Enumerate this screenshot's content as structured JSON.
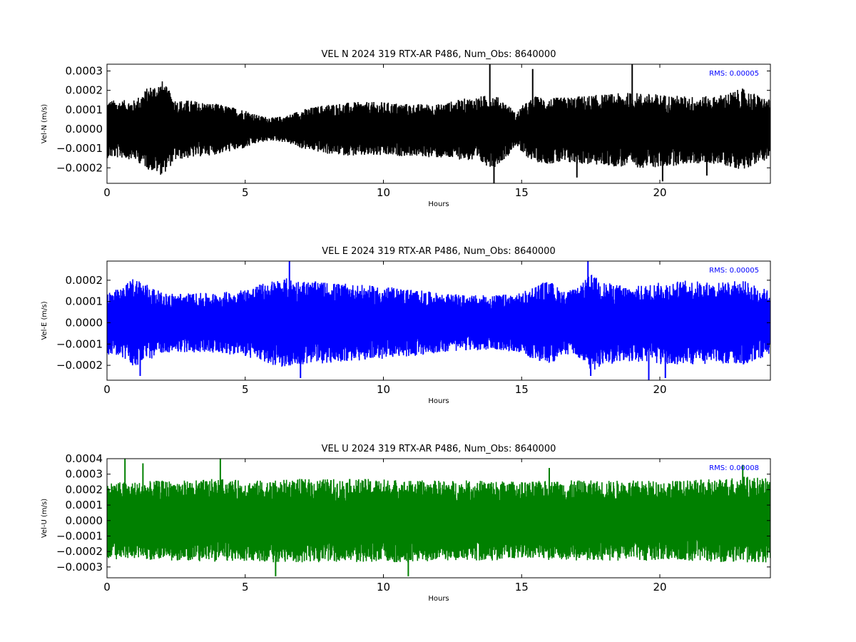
{
  "chart_data": [
    {
      "type": "line",
      "title": "VEL N 2024 319 RTX-AR  P486, Num_Obs: 8640000",
      "xlabel": "Hours",
      "ylabel": "Vel-N (m/s)",
      "color": "#000000",
      "annotation": "RMS:  0.00005",
      "annotation_color": "#0000ff",
      "xlim": [
        0,
        24
      ],
      "ylim": [
        -0.00028,
        0.000335
      ],
      "x_ticks": [
        0,
        5,
        10,
        15,
        20
      ],
      "y_ticks": [
        -0.0002,
        -0.0001,
        0.0,
        0.0001,
        0.0002,
        0.0003
      ],
      "x_tick_labels": [
        "0",
        "5",
        "10",
        "15",
        "20"
      ],
      "y_tick_labels": [
        "−0.0002",
        "−0.0001",
        "0.0000",
        "0.0001",
        "0.0002",
        "0.0003"
      ],
      "envelope": {
        "x": [
          0,
          0.5,
          1.0,
          1.5,
          2.0,
          2.5,
          3.0,
          4.0,
          5.0,
          5.5,
          6.0,
          6.5,
          7.0,
          8.0,
          9.0,
          10.0,
          11.0,
          12.0,
          13.0,
          13.5,
          14.0,
          14.5,
          14.8,
          15.0,
          15.5,
          16.0,
          17.0,
          18.0,
          19.0,
          20.0,
          21.0,
          22.0,
          23.0,
          24.0
        ],
        "upper": [
          0.00015,
          0.00015,
          0.00015,
          0.00022,
          0.00025,
          0.00015,
          0.00015,
          0.00013,
          0.0001,
          7e-05,
          6e-05,
          7e-05,
          0.0001,
          0.00013,
          0.00014,
          0.00014,
          0.00013,
          0.00013,
          0.00016,
          0.00017,
          0.00018,
          0.00013,
          8e-05,
          0.00012,
          0.00017,
          0.00016,
          0.00017,
          0.00018,
          0.00019,
          0.00018,
          0.00017,
          0.00017,
          0.00021,
          0.00015
        ],
        "lower": [
          -0.00015,
          -0.00015,
          -0.00016,
          -0.00021,
          -0.00024,
          -0.00016,
          -0.00015,
          -0.00013,
          -0.0001,
          -7e-05,
          -6e-05,
          -7e-05,
          -0.0001,
          -0.00013,
          -0.00014,
          -0.00014,
          -0.00014,
          -0.00015,
          -0.00016,
          -0.00018,
          -0.0002,
          -0.00014,
          -8e-05,
          -0.00013,
          -0.00017,
          -0.00018,
          -0.00018,
          -0.00019,
          -0.0002,
          -0.0002,
          -0.00018,
          -0.00018,
          -0.00021,
          -0.00015
        ]
      },
      "spikes": [
        [
          13.85,
          0.00034
        ],
        [
          14.0,
          -0.00028
        ],
        [
          15.4,
          0.00031
        ],
        [
          17.0,
          -0.00025
        ],
        [
          19.0,
          0.00034
        ],
        [
          20.1,
          -0.00027
        ],
        [
          21.7,
          -0.00024
        ]
      ]
    },
    {
      "type": "line",
      "title": "VEL E 2024 319 RTX-AR  P486, Num_Obs: 8640000",
      "xlabel": "Hours",
      "ylabel": "Vel-E (m/s)",
      "color": "#0000ff",
      "annotation": "RMS:  0.00005",
      "annotation_color": "#0000ff",
      "xlim": [
        0,
        24
      ],
      "ylim": [
        -0.00027,
        0.00029
      ],
      "x_ticks": [
        0,
        5,
        10,
        15,
        20
      ],
      "y_ticks": [
        -0.0002,
        -0.0001,
        0.0,
        0.0001,
        0.0002
      ],
      "x_tick_labels": [
        "0",
        "5",
        "10",
        "15",
        "20"
      ],
      "y_tick_labels": [
        "−0.0002",
        "−0.0001",
        "0.0000",
        "0.0001",
        "0.0002"
      ],
      "envelope": {
        "x": [
          0,
          0.5,
          1.0,
          1.5,
          2.0,
          3.0,
          4.0,
          5.0,
          5.5,
          6.0,
          6.5,
          7.0,
          8.0,
          9.0,
          10.0,
          11.0,
          12.0,
          13.0,
          14.0,
          15.0,
          15.5,
          16.0,
          16.5,
          17.0,
          17.5,
          18.0,
          19.0,
          20.0,
          21.0,
          22.0,
          23.0,
          24.0
        ],
        "upper": [
          0.00015,
          0.00016,
          0.00022,
          0.00018,
          0.00014,
          0.00014,
          0.00014,
          0.00016,
          0.00018,
          0.0002,
          0.00021,
          0.0002,
          0.00019,
          0.00018,
          0.00017,
          0.00016,
          0.00014,
          0.00013,
          0.00013,
          0.00014,
          0.00018,
          0.0002,
          0.00015,
          0.00016,
          0.00023,
          0.00019,
          0.00017,
          0.00019,
          0.0002,
          0.00019,
          0.0002,
          0.00015
        ],
        "lower": [
          -0.00015,
          -0.00016,
          -0.00021,
          -0.00018,
          -0.00014,
          -0.00014,
          -0.00014,
          -0.00016,
          -0.00018,
          -0.0002,
          -0.00021,
          -0.0002,
          -0.00019,
          -0.00018,
          -0.00017,
          -0.00016,
          -0.00014,
          -0.00013,
          -0.00013,
          -0.00014,
          -0.00018,
          -0.0002,
          -0.00015,
          -0.00016,
          -0.00023,
          -0.0002,
          -0.00018,
          -0.0002,
          -0.0002,
          -0.00019,
          -0.0002,
          -0.00015
        ]
      },
      "spikes": [
        [
          1.2,
          -0.00025
        ],
        [
          6.6,
          0.00029
        ],
        [
          7.0,
          -0.00026
        ],
        [
          17.4,
          0.00029
        ],
        [
          17.5,
          -0.00025
        ],
        [
          19.6,
          -0.00027
        ],
        [
          20.2,
          -0.00026
        ]
      ]
    },
    {
      "type": "line",
      "title": "VEL U 2024 319 RTX-AR  P486, Num_Obs: 8640000",
      "xlabel": "Hours",
      "ylabel": "Vel-U (m/s)",
      "color": "#008000",
      "annotation": "RMS:  0.00008",
      "annotation_color": "#0000ff",
      "xlim": [
        0,
        24
      ],
      "ylim": [
        -0.00037,
        0.0004
      ],
      "x_ticks": [
        0,
        5,
        10,
        15,
        20
      ],
      "y_ticks": [
        -0.0003,
        -0.0002,
        -0.0001,
        0.0,
        0.0001,
        0.0002,
        0.0003,
        0.0004
      ],
      "x_tick_labels": [
        "0",
        "5",
        "10",
        "15",
        "20"
      ],
      "y_tick_labels": [
        "−0.0003",
        "−0.0002",
        "−0.0001",
        "0.0000",
        "0.0001",
        "0.0002",
        "0.0003",
        "0.0004"
      ],
      "envelope": {
        "x": [
          0,
          1,
          2,
          3,
          4,
          5,
          6,
          7,
          8,
          9,
          10,
          11,
          12,
          13,
          14,
          15,
          16,
          17,
          18,
          19,
          20,
          21,
          22,
          23,
          24
        ],
        "upper": [
          0.00025,
          0.00025,
          0.00026,
          0.00026,
          0.00027,
          0.00026,
          0.00026,
          0.00027,
          0.00027,
          0.00027,
          0.00027,
          0.00026,
          0.00026,
          0.00026,
          0.00026,
          0.00025,
          0.00026,
          0.00026,
          0.00026,
          0.00026,
          0.00026,
          0.00026,
          0.00027,
          0.00029,
          0.00027
        ],
        "lower": [
          -0.00025,
          -0.00025,
          -0.00026,
          -0.00026,
          -0.00027,
          -0.00026,
          -0.00027,
          -0.00027,
          -0.00027,
          -0.00027,
          -0.00027,
          -0.00027,
          -0.00026,
          -0.00026,
          -0.00026,
          -0.00025,
          -0.00026,
          -0.00026,
          -0.00026,
          -0.00026,
          -0.00026,
          -0.00026,
          -0.00027,
          -0.00028,
          -0.00027
        ]
      },
      "spikes": [
        [
          0.65,
          0.0004
        ],
        [
          1.3,
          0.00037
        ],
        [
          4.1,
          0.0004
        ],
        [
          6.1,
          -0.00036
        ],
        [
          10.9,
          -0.00036
        ],
        [
          16.0,
          0.00034
        ],
        [
          23.0,
          0.00036
        ]
      ]
    }
  ]
}
